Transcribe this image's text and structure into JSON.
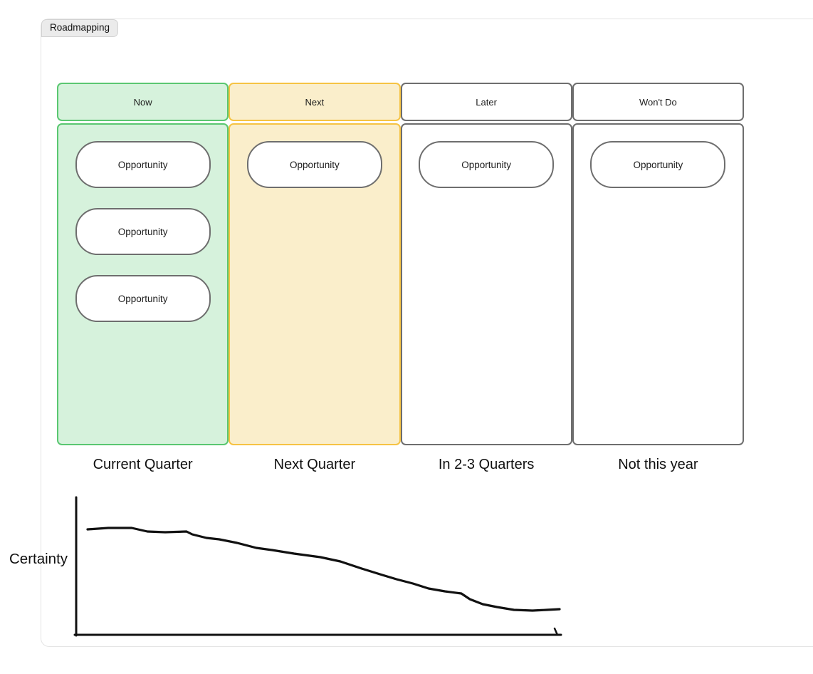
{
  "frame": {
    "label": "Roadmapping"
  },
  "board": {
    "card_border_color": "#6e6e6e",
    "columns": [
      {
        "header": "Now",
        "timeline_label": "Current Quarter",
        "cards": [
          "Opportunity",
          "Opportunity",
          "Opportunity"
        ],
        "colors": {
          "border": "#5ac771",
          "header_fill": "#d6f2dc",
          "body_fill": "#d6f2dc"
        }
      },
      {
        "header": "Next",
        "timeline_label": "Next Quarter",
        "cards": [
          "Opportunity"
        ],
        "colors": {
          "border": "#f6c343",
          "header_fill": "#faeecb",
          "body_fill": "#faeecb"
        }
      },
      {
        "header": "Later",
        "timeline_label": "In 2-3 Quarters",
        "cards": [
          "Opportunity"
        ],
        "colors": {
          "border": "#6e6e6e",
          "header_fill": "#ffffff",
          "body_fill": "#ffffff"
        }
      },
      {
        "header": "Won't Do",
        "timeline_label": "Not this year",
        "cards": [
          "Opportunity"
        ],
        "colors": {
          "border": "#6e6e6e",
          "header_fill": "#ffffff",
          "body_fill": "#ffffff"
        }
      }
    ]
  },
  "certainty_chart": {
    "type": "line",
    "ylabel": "Certainty",
    "description": "Hand-drawn freehand curve showing certainty decreasing from Now to Not this year; no ticks or numeric scale shown",
    "stroke_color": "#111111",
    "axes": {
      "y_axis": [
        [
          107,
          8
        ],
        [
          107,
          202
        ]
      ],
      "x_axis": [
        [
          105,
          201
        ],
        [
          788,
          201
        ]
      ],
      "end_hook": [
        [
          783,
          201
        ],
        [
          779,
          192
        ]
      ]
    },
    "line_points": [
      [
        123,
        53
      ],
      [
        152,
        51
      ],
      [
        185,
        51
      ],
      [
        207,
        56
      ],
      [
        232,
        57
      ],
      [
        262,
        56
      ],
      [
        270,
        60
      ],
      [
        290,
        65
      ],
      [
        308,
        67
      ],
      [
        333,
        72
      ],
      [
        360,
        79
      ],
      [
        382,
        82
      ],
      [
        413,
        87
      ],
      [
        450,
        92
      ],
      [
        478,
        98
      ],
      [
        508,
        108
      ],
      [
        537,
        117
      ],
      [
        557,
        123
      ],
      [
        580,
        129
      ],
      [
        602,
        136
      ],
      [
        625,
        140
      ],
      [
        648,
        143
      ],
      [
        660,
        151
      ],
      [
        678,
        158
      ],
      [
        698,
        162
      ],
      [
        722,
        166
      ],
      [
        748,
        167
      ],
      [
        768,
        166
      ],
      [
        786,
        165
      ]
    ]
  }
}
